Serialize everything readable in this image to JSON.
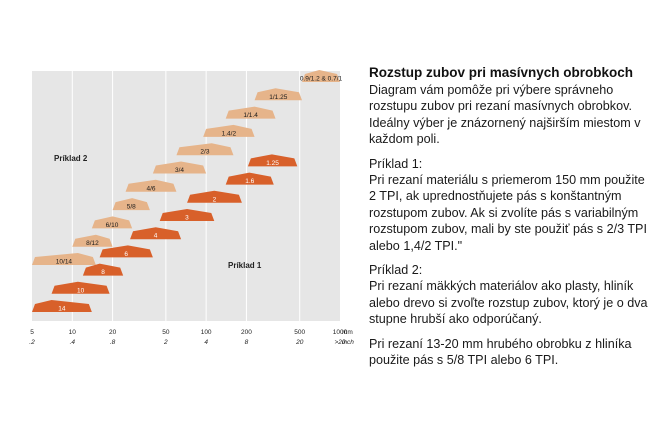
{
  "chart_data": {
    "type": "bar",
    "x_scale": "log",
    "xlim": [
      5,
      1000
    ],
    "x_ticks_mm": [
      "5",
      "10",
      "20",
      "50",
      "100",
      "200",
      "500",
      "1000"
    ],
    "x_ticks_inch": [
      ".2",
      ".4",
      ".8",
      "2",
      "4",
      "8",
      "20",
      ">20"
    ],
    "x_unit_mm": "mm",
    "x_unit_inch": "inch",
    "grid": true,
    "annotations": [
      "Príklad 2",
      "Príklad 1"
    ],
    "series": [
      {
        "color": "#e6b48a",
        "bands": [
          {
            "label": "10/14",
            "from": 5,
            "to": 15,
            "peak": 11
          },
          {
            "label": "8/12",
            "from": 10,
            "to": 20,
            "peak": 15
          },
          {
            "label": "6/10",
            "from": 14,
            "to": 28,
            "peak": 20
          },
          {
            "label": "5/8",
            "from": 20,
            "to": 38,
            "peak": 28
          },
          {
            "label": "4/6",
            "from": 25,
            "to": 60,
            "peak": 42
          },
          {
            "label": "3/4",
            "from": 40,
            "to": 100,
            "peak": 65
          },
          {
            "label": "2/3",
            "from": 60,
            "to": 160,
            "peak": 110
          },
          {
            "label": "1.4/2",
            "from": 95,
            "to": 230,
            "peak": 160
          },
          {
            "label": "1/1.4",
            "from": 140,
            "to": 330,
            "peak": 230
          },
          {
            "label": "1/1.25",
            "from": 230,
            "to": 520,
            "peak": 330
          },
          {
            "label": "0.9/1.2 & 0.7/1",
            "from": 520,
            "to": 1000,
            "peak": 700
          }
        ]
      },
      {
        "color": "#d8602a",
        "bands": [
          {
            "label": "14",
            "from": 5,
            "to": 14,
            "peak": 7
          },
          {
            "label": "10",
            "from": 7,
            "to": 19,
            "peak": 11
          },
          {
            "label": "8",
            "from": 12,
            "to": 24,
            "peak": 16
          },
          {
            "label": "6",
            "from": 16,
            "to": 40,
            "peak": 26
          },
          {
            "label": "4",
            "from": 27,
            "to": 65,
            "peak": 42
          },
          {
            "label": "3",
            "from": 45,
            "to": 115,
            "peak": 72
          },
          {
            "label": "2",
            "from": 72,
            "to": 185,
            "peak": 115
          },
          {
            "label": "1.6",
            "from": 140,
            "to": 320,
            "peak": 210
          },
          {
            "label": "1.25",
            "from": 205,
            "to": 480,
            "peak": 310
          }
        ]
      }
    ]
  },
  "text": {
    "heading": "Rozstup zubov pri masívnych obrobkoch",
    "intro": "Diagram vám pomôže pri výbere správneho rozstupu zubov pri rezaní masívnych obrobkov. Ideálny výber je znázornený najširším miestom v každom poli.",
    "example1_label": "Príklad 1:",
    "example1_body": "Pri rezaní materiálu s priemerom 150 mm použite 2 TPI, ak upred­nostňujete pás s konštantným rozstupom zubov. Ak si zvolíte pás s variabilným rozstupom zubov, mali by ste použiť pás s 2/3 TPI alebo 1,4/2 TPI.\"",
    "example2_label": "Príklad 2:",
    "example2_body": "Pri rezaní mäkkých materiálov ako plasty, hliník alebo drevo si zvoľte rozstup zubov, ktorý je o dva stupne hrubší ako odporúčaný.",
    "note": "Pri rezaní 13-20 mm hrubého obrobku z hliníka použite pás s 5/8 TPI alebo 6 TPI."
  }
}
